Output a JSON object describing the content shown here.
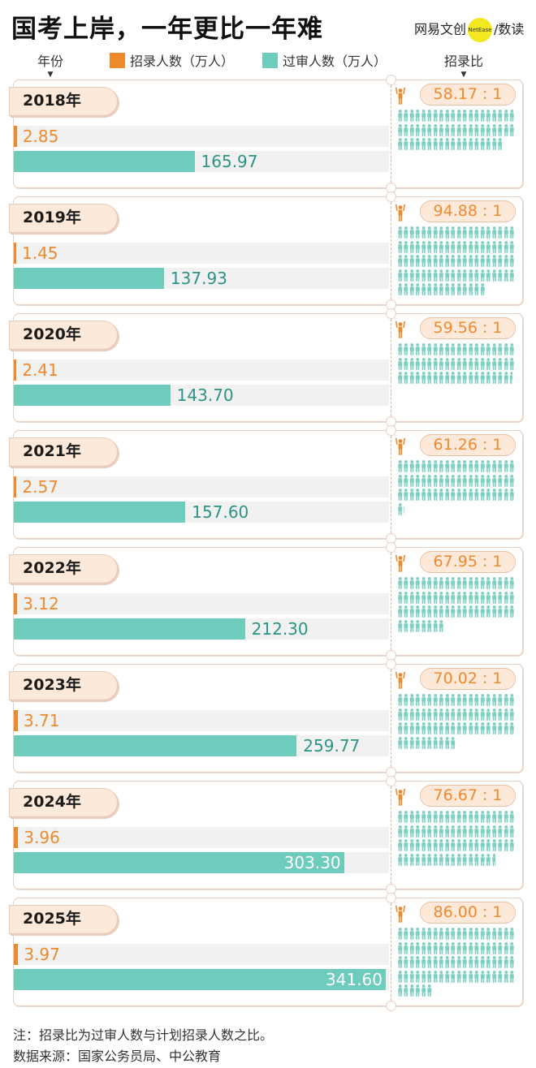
{
  "header": {
    "title": "国考上岸，一年更比一年难",
    "brand_name": "网易文创",
    "brand_logo_text": "NetEase",
    "brand_sep": "/",
    "brand_section": "数读"
  },
  "legend": {
    "year": "年份",
    "recruit": "招录人数（万人）",
    "applicants": "过审人数（万人）",
    "ratio": "招录比"
  },
  "colors": {
    "recruit": "#ee8a2e",
    "applicants": "#6dccbc",
    "ratio_text": "#ee8a2e",
    "year_tag_bg": "#fde9da",
    "person_icon": "#7dcfc2"
  },
  "chart_data": {
    "type": "bar",
    "title": "国考上岸，一年更比一年难",
    "categories": [
      "2018年",
      "2019年",
      "2020年",
      "2021年",
      "2022年",
      "2023年",
      "2024年",
      "2025年"
    ],
    "series": [
      {
        "name": "招录人数（万人）",
        "values": [
          2.85,
          1.45,
          2.41,
          2.57,
          3.12,
          3.71,
          3.96,
          3.97
        ]
      },
      {
        "name": "过审人数（万人）",
        "values": [
          165.97,
          137.93,
          143.7,
          157.6,
          212.3,
          259.77,
          303.3,
          341.6
        ]
      }
    ],
    "value_labels": {
      "recruit": [
        "2.85",
        "1.45",
        "2.41",
        "2.57",
        "3.12",
        "3.71",
        "3.96",
        "3.97"
      ],
      "applicants": [
        "165.97",
        "137.93",
        "143.70",
        "157.60",
        "212.30",
        "259.77",
        "303.30",
        "341.60"
      ]
    },
    "ratio": {
      "name": "招录比",
      "values": [
        58.17,
        94.88,
        59.56,
        61.26,
        67.95,
        70.02,
        76.67,
        86.0
      ],
      "labels": [
        "58.17 : 1",
        "94.88 : 1",
        "59.56 : 1",
        "61.26 : 1",
        "67.95 : 1",
        "70.02 : 1",
        "76.67 : 1",
        "86.00 : 1"
      ]
    },
    "xlim": [
      0,
      341.6
    ],
    "orientation": "horizontal",
    "grid": false
  },
  "notes": {
    "note": "注：招录比为过审人数与计划招录人数之比。",
    "source": "数据来源：国家公务员局、中公教育"
  }
}
